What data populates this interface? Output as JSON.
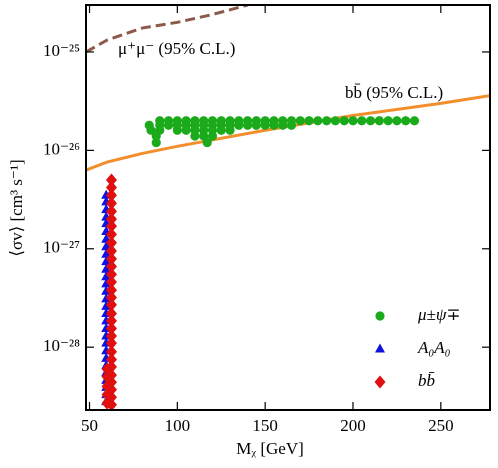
{
  "chart_data": {
    "type": "scatter",
    "xlabel": "Mᵪ [GeV]",
    "ylabel": "⟨σv⟩ [cm³ s⁻¹]",
    "xlim": [
      48,
      278
    ],
    "xticks": [
      50,
      100,
      150,
      200,
      250
    ],
    "ylim": [
      2.3e-29,
      3e-25
    ],
    "yscale": "log",
    "yticks": [
      {
        "value": 1e-28,
        "label": "10⁻²⁸"
      },
      {
        "value": 1e-27,
        "label": "10⁻²⁷"
      },
      {
        "value": 1e-26,
        "label": "10⁻²⁶"
      },
      {
        "value": 1e-25,
        "label": "10⁻²⁵"
      }
    ],
    "legend": "lower right",
    "series": [
      {
        "type": "line",
        "label": "μ⁺μ⁻ (95% C.L.)",
        "color": "#8b5a4a",
        "dash": true,
        "x": [
          48,
          60,
          80,
          100,
          120,
          140
        ],
        "values": [
          1e-25,
          1.32e-25,
          1.75e-25,
          2e-25,
          2.4e-25,
          3e-25
        ]
      },
      {
        "type": "line",
        "label": "bb̄ (95% C.L.)",
        "color": "#f28e2b",
        "dash": false,
        "x": [
          48,
          60,
          80,
          100,
          150,
          200,
          250,
          278
        ],
        "values": [
          6.3e-27,
          7.6e-27,
          9.3e-27,
          1.1e-26,
          1.6e-26,
          2.26e-26,
          3e-26,
          3.6e-26
        ]
      },
      {
        "type": "scatter",
        "name": "μ±ψ∓",
        "color": "#1aaa1a",
        "marker": "circle",
        "x": [
          90,
          95,
          100,
          105,
          110,
          115,
          120,
          125,
          130,
          135,
          140,
          145,
          150,
          155,
          160,
          165,
          170,
          175,
          180,
          185,
          190,
          195,
          200,
          205,
          210,
          215,
          220,
          225,
          230,
          235,
          84,
          90,
          95,
          100,
          105,
          110,
          115,
          120,
          125,
          130,
          135,
          140,
          145,
          150,
          155,
          160,
          165,
          85,
          90,
          100,
          105,
          110,
          115,
          120,
          125,
          130,
          88,
          110,
          115,
          120,
          88,
          117
        ],
        "values": [
          2e-26,
          2e-26,
          2e-26,
          2e-26,
          2e-26,
          2e-26,
          2e-26,
          2e-26,
          2e-26,
          2e-26,
          2e-26,
          2e-26,
          2e-26,
          2e-26,
          2e-26,
          2e-26,
          2e-26,
          2e-26,
          2e-26,
          2e-26,
          2e-26,
          2e-26,
          2e-26,
          2e-26,
          2e-26,
          2e-26,
          2e-26,
          2e-26,
          2e-26,
          2e-26,
          1.8e-26,
          1.8e-26,
          1.8e-26,
          1.8e-26,
          1.8e-26,
          1.8e-26,
          1.8e-26,
          1.8e-26,
          1.8e-26,
          1.8e-26,
          1.8e-26,
          1.8e-26,
          1.8e-26,
          1.8e-26,
          1.8e-26,
          1.8e-26,
          1.8e-26,
          1.6e-26,
          1.6e-26,
          1.6e-26,
          1.6e-26,
          1.6e-26,
          1.6e-26,
          1.6e-26,
          1.6e-26,
          1.6e-26,
          1.4e-26,
          1.4e-26,
          1.4e-26,
          1.4e-26,
          1.2e-26,
          1.2e-26
        ]
      },
      {
        "type": "scatter",
        "name": "A₀A₀",
        "color": "#1010e0",
        "marker": "triangle",
        "x": [
          59.5,
          59.5,
          59.5,
          59.5,
          59.5,
          59.5,
          59.5,
          59.5,
          59.5,
          59.5,
          59.5,
          59.5,
          59.5,
          59.5,
          59.5,
          59.5,
          59.5,
          59.5,
          59.5,
          59.5,
          59.5,
          59.5,
          59.5,
          59.5,
          59.5,
          59.5,
          59.5,
          59.5,
          59.5
        ],
        "values": [
          3.5e-27,
          3e-27,
          2.5e-27,
          2.1e-27,
          1.8e-27,
          1.5e-27,
          1.25e-27,
          1.05e-27,
          8.8e-28,
          7.4e-28,
          6.2e-28,
          5.2e-28,
          4.4e-28,
          3.7e-28,
          3.1e-28,
          2.6e-28,
          2.2e-28,
          1.85e-28,
          1.55e-28,
          1.3e-28,
          1.1e-28,
          9.2e-29,
          7.7e-29,
          6.5e-29,
          5.5e-29,
          4.6e-29,
          3.9e-29,
          3.3e-29,
          2.8e-29
        ]
      },
      {
        "type": "scatter",
        "name": "bb̄",
        "color": "#e01010",
        "marker": "diamond",
        "x": [
          62.5,
          62.5,
          62.5,
          62.5,
          62.5,
          62.5,
          62.5,
          62.5,
          62.5,
          62.5,
          62.5,
          62.5,
          62.5,
          62.5,
          62.5,
          62.5,
          62.5,
          62.5,
          62.5,
          62.5,
          62.5,
          62.5,
          62.5,
          62.5,
          62.5,
          62.5,
          62.5,
          62.5,
          62.5,
          62.5,
          60,
          60,
          60,
          60,
          60
        ],
        "values": [
          5e-27,
          4.2e-27,
          3.5e-27,
          2.9e-27,
          2.4e-27,
          2e-27,
          1.7e-27,
          1.4e-27,
          1.15e-27,
          9.5e-28,
          7.9e-28,
          6.6e-28,
          5.5e-28,
          4.6e-28,
          3.8e-28,
          3.2e-28,
          2.7e-28,
          2.2e-28,
          1.85e-28,
          1.55e-28,
          1.3e-28,
          1.1e-28,
          9e-29,
          7.5e-29,
          6.3e-29,
          5.2e-29,
          4.4e-29,
          3.7e-29,
          3.1e-29,
          2.6e-29,
          6e-29,
          5e-29,
          4e-29,
          3.3e-29,
          2.7e-29
        ]
      }
    ]
  }
}
